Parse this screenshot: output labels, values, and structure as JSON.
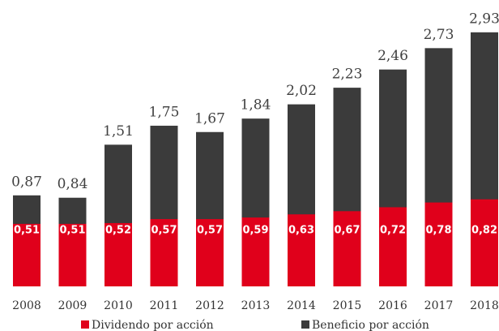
{
  "chart_data": {
    "type": "bar",
    "categories": [
      "2008",
      "2009",
      "2010",
      "2011",
      "2012",
      "2013",
      "2014",
      "2015",
      "2016",
      "2017",
      "2018"
    ],
    "series": [
      {
        "name": "Beneficio por acción",
        "color": "#3b3b3b",
        "values": [
          0.87,
          0.84,
          1.51,
          1.75,
          1.67,
          1.84,
          2.02,
          2.23,
          2.46,
          2.73,
          2.93
        ],
        "value_labels": [
          "0,87",
          "0,84",
          "1,51",
          "1,75",
          "1,67",
          "1,84",
          "2,02",
          "2,23",
          "2,46",
          "2,73",
          "2,93"
        ]
      },
      {
        "name": "Dividendo por acción",
        "color": "#e0001b",
        "values": [
          0.51,
          0.51,
          0.52,
          0.57,
          0.57,
          0.59,
          0.63,
          0.67,
          0.72,
          0.78,
          0.82
        ],
        "value_labels": [
          "0,51",
          "0,51",
          "0,52",
          "0,57",
          "0,57",
          "0,59",
          "0,63",
          "0,67",
          "0,72",
          "0,78",
          "0,82"
        ]
      }
    ],
    "ylim": [
      -0.28,
      3.0
    ]
  }
}
